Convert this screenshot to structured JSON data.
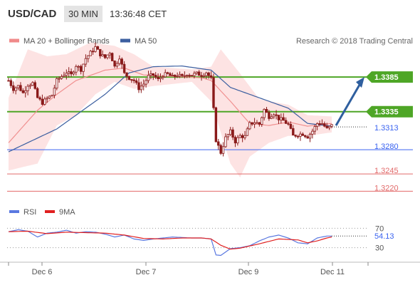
{
  "header": {
    "pair": "USD/CAD",
    "timeframe": "30 MIN",
    "time": "13:36:48 CET"
  },
  "legend": {
    "items": [
      {
        "label": "MA 20 + Bollinger Bands",
        "color": "#f08a8a"
      },
      {
        "label": "MA 50",
        "color": "#3c5fa0"
      }
    ],
    "rsi_items": [
      {
        "label": "RSI",
        "color": "#5a78e0"
      },
      {
        "label": "9MA",
        "color": "#e02020"
      }
    ]
  },
  "credit": "Research © 2018 Trading Central",
  "colors": {
    "green": "#4ea626",
    "blue": "#3a63f0",
    "red": "#e26a6a",
    "candle": "#8a1a1a",
    "ma20": "#f09090",
    "ma50": "#3c5fa0",
    "band_fill": "#fde3e3",
    "rsi": "#5a78e0",
    "rsi_ma": "#e02020",
    "arrow": "#2f5f9f"
  },
  "chart_data": [
    {
      "type": "candlestick",
      "title": "USD/CAD",
      "ylim": [
        1.3205,
        1.3415
      ],
      "x_ticks": [
        "Dec 6",
        "Dec 7",
        "Dec 9",
        "Dec 11"
      ],
      "current_price": 1.3313,
      "levels": [
        {
          "value": 1.3385,
          "style": "resistance",
          "color": "#4ea626"
        },
        {
          "value": 1.3335,
          "style": "resistance",
          "color": "#4ea626"
        },
        {
          "value": 1.328,
          "style": "pivot",
          "color": "#3a63f0"
        },
        {
          "value": 1.3245,
          "style": "support",
          "color": "#e26a6a"
        },
        {
          "value": 1.322,
          "style": "support",
          "color": "#e26a6a"
        }
      ],
      "forecast": {
        "from": 1.3313,
        "to": 1.3385
      },
      "price_path": [
        [
          0,
          1.338
        ],
        [
          1,
          1.3368
        ],
        [
          2,
          1.3372
        ],
        [
          3,
          1.3362
        ],
        [
          4,
          1.3374
        ],
        [
          5,
          1.3376
        ],
        [
          6,
          1.3355
        ],
        [
          7,
          1.3348
        ],
        [
          8,
          1.3354
        ],
        [
          9,
          1.3359
        ],
        [
          10,
          1.338
        ],
        [
          11,
          1.3386
        ],
        [
          12,
          1.3392
        ],
        [
          13,
          1.3388
        ],
        [
          14,
          1.3402
        ],
        [
          15,
          1.3396
        ],
        [
          16,
          1.3412
        ],
        [
          17,
          1.342
        ],
        [
          18,
          1.3428
        ],
        [
          19,
          1.3418
        ],
        [
          20,
          1.3413
        ],
        [
          21,
          1.3421
        ],
        [
          22,
          1.34
        ],
        [
          23,
          1.3414
        ],
        [
          24,
          1.339
        ],
        [
          25,
          1.3384
        ],
        [
          26,
          1.338
        ],
        [
          27,
          1.3369
        ],
        [
          28,
          1.3375
        ],
        [
          29,
          1.3386
        ],
        [
          30,
          1.3388
        ],
        [
          31,
          1.3381
        ],
        [
          32,
          1.3388
        ],
        [
          33,
          1.3389
        ],
        [
          34,
          1.3385
        ],
        [
          35,
          1.3388
        ],
        [
          36,
          1.3385
        ],
        [
          37,
          1.339
        ],
        [
          38,
          1.3388
        ],
        [
          39,
          1.339
        ],
        [
          40,
          1.3388
        ],
        [
          41,
          1.3392
        ],
        [
          42,
          1.3382
        ],
        [
          43,
          1.3294
        ],
        [
          44,
          1.3276
        ],
        [
          45,
          1.3297
        ],
        [
          46,
          1.3306
        ],
        [
          47,
          1.3292
        ],
        [
          48,
          1.33
        ],
        [
          49,
          1.3299
        ],
        [
          50,
          1.3317
        ],
        [
          51,
          1.332
        ],
        [
          52,
          1.3317
        ],
        [
          53,
          1.3338
        ],
        [
          54,
          1.3328
        ],
        [
          55,
          1.3333
        ],
        [
          56,
          1.3325
        ],
        [
          57,
          1.3322
        ],
        [
          58,
          1.3316
        ],
        [
          59,
          1.33
        ],
        [
          60,
          1.3302
        ],
        [
          61,
          1.3303
        ],
        [
          62,
          1.3299
        ],
        [
          63,
          1.3307
        ],
        [
          64,
          1.3318
        ],
        [
          65,
          1.3318
        ],
        [
          66,
          1.331
        ],
        [
          67,
          1.3315
        ]
      ],
      "ma50_path": [
        [
          0,
          1.3277
        ],
        [
          10,
          1.331
        ],
        [
          20,
          1.336
        ],
        [
          25,
          1.3391
        ],
        [
          30,
          1.34
        ],
        [
          36,
          1.3401
        ],
        [
          42,
          1.3395
        ],
        [
          46,
          1.337
        ],
        [
          52,
          1.3355
        ],
        [
          58,
          1.334
        ],
        [
          62,
          1.3318
        ],
        [
          67,
          1.3314
        ]
      ],
      "ma20_path": [
        [
          0,
          1.329
        ],
        [
          6,
          1.3337
        ],
        [
          10,
          1.336
        ],
        [
          14,
          1.338
        ],
        [
          20,
          1.3395
        ],
        [
          24,
          1.3398
        ],
        [
          28,
          1.3388
        ],
        [
          34,
          1.3386
        ],
        [
          40,
          1.3384
        ],
        [
          42,
          1.338
        ],
        [
          46,
          1.335
        ],
        [
          50,
          1.3318
        ],
        [
          54,
          1.3315
        ],
        [
          58,
          1.332
        ],
        [
          62,
          1.3314
        ],
        [
          67,
          1.3318
        ]
      ],
      "band_upper": [
        [
          0,
          1.3355
        ],
        [
          4,
          1.3425
        ],
        [
          8,
          1.3415
        ],
        [
          12,
          1.3418
        ],
        [
          17,
          1.3435
        ],
        [
          22,
          1.343
        ],
        [
          26,
          1.3418
        ],
        [
          30,
          1.34
        ],
        [
          38,
          1.3396
        ],
        [
          42,
          1.34
        ],
        [
          44,
          1.3425
        ],
        [
          48,
          1.339
        ],
        [
          52,
          1.3353
        ],
        [
          58,
          1.3345
        ],
        [
          62,
          1.333
        ],
        [
          67,
          1.3328
        ]
      ],
      "band_lower": [
        [
          0,
          1.325
        ],
        [
          6,
          1.326
        ],
        [
          10,
          1.3315
        ],
        [
          14,
          1.333
        ],
        [
          18,
          1.336
        ],
        [
          22,
          1.3378
        ],
        [
          26,
          1.3368
        ],
        [
          30,
          1.3372
        ],
        [
          38,
          1.3378
        ],
        [
          42,
          1.335
        ],
        [
          46,
          1.326
        ],
        [
          48,
          1.324
        ],
        [
          50,
          1.327
        ],
        [
          54,
          1.329
        ],
        [
          58,
          1.33
        ],
        [
          62,
          1.33
        ],
        [
          67,
          1.3305
        ]
      ]
    },
    {
      "type": "line",
      "title": "RSI",
      "ylim": [
        0,
        100
      ],
      "y_ticks": [
        70,
        30
      ],
      "current_value": 54.13,
      "current_label": "54.13",
      "series": [
        {
          "name": "RSI",
          "color": "#5a78e0",
          "values": [
            [
              0,
              63
            ],
            [
              2,
              67
            ],
            [
              4,
              64
            ],
            [
              6,
              52
            ],
            [
              8,
              60
            ],
            [
              10,
              62
            ],
            [
              12,
              66
            ],
            [
              14,
              60
            ],
            [
              16,
              63
            ],
            [
              18,
              62
            ],
            [
              20,
              58
            ],
            [
              22,
              52
            ],
            [
              24,
              56
            ],
            [
              26,
              48
            ],
            [
              28,
              45
            ],
            [
              30,
              48
            ],
            [
              32,
              50
            ],
            [
              34,
              52
            ],
            [
              36,
              51
            ],
            [
              38,
              50
            ],
            [
              40,
              50
            ],
            [
              42,
              48
            ],
            [
              43,
              15
            ],
            [
              44,
              14
            ],
            [
              46,
              28
            ],
            [
              48,
              30
            ],
            [
              50,
              34
            ],
            [
              52,
              44
            ],
            [
              54,
              52
            ],
            [
              56,
              56
            ],
            [
              58,
              50
            ],
            [
              60,
              40
            ],
            [
              62,
              38
            ],
            [
              64,
              50
            ],
            [
              66,
              54
            ],
            [
              67,
              54
            ]
          ]
        },
        {
          "name": "9MA",
          "color": "#e02020",
          "values": [
            [
              0,
              63
            ],
            [
              4,
              64
            ],
            [
              8,
              59
            ],
            [
              12,
              62
            ],
            [
              16,
              61
            ],
            [
              20,
              60
            ],
            [
              24,
              56
            ],
            [
              28,
              49
            ],
            [
              32,
              48
            ],
            [
              36,
              50
            ],
            [
              40,
              50
            ],
            [
              42,
              48
            ],
            [
              44,
              35
            ],
            [
              46,
              27
            ],
            [
              48,
              29
            ],
            [
              52,
              38
            ],
            [
              56,
              48
            ],
            [
              60,
              46
            ],
            [
              62,
              40
            ],
            [
              64,
              44
            ],
            [
              66,
              50
            ],
            [
              67,
              52
            ]
          ]
        }
      ]
    }
  ]
}
